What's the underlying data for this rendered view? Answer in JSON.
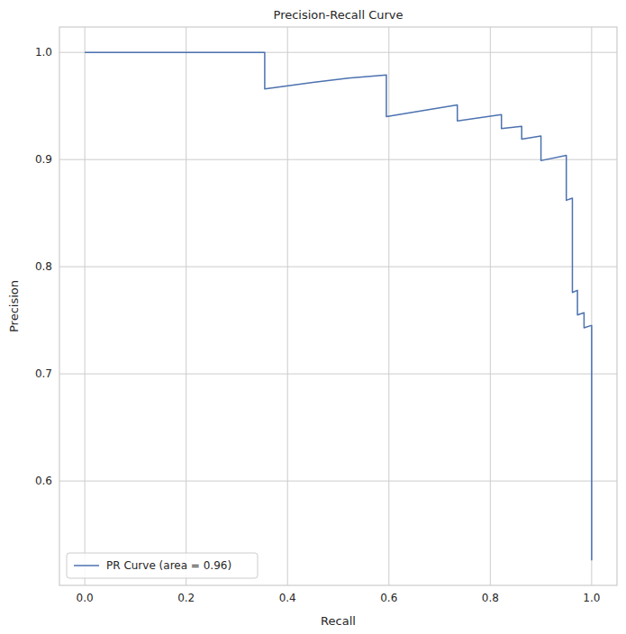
{
  "chart_data": {
    "type": "line",
    "title": "Precision-Recall Curve",
    "x_label": "Recall",
    "y_label": "Precision",
    "x": [
      0,
      0.355,
      0.355,
      0.45,
      0.52,
      0.595,
      0.595,
      0.735,
      0.735,
      0.822,
      0.822,
      0.862,
      0.862,
      0.9,
      0.9,
      0.95,
      0.95,
      0.962,
      0.962,
      0.972,
      0.972,
      0.985,
      0.985,
      0.998,
      1.0,
      1.0
    ],
    "series": [
      {
        "name": "PR Curve (area = 0.96)",
        "color": "#4c72b0",
        "values": [
          1.0,
          1.0,
          0.966,
          0.972,
          0.976,
          0.979,
          0.94,
          0.951,
          0.936,
          0.942,
          0.929,
          0.931,
          0.919,
          0.922,
          0.899,
          0.904,
          0.862,
          0.864,
          0.776,
          0.778,
          0.755,
          0.757,
          0.743,
          0.745,
          0.745,
          0.526
        ]
      }
    ],
    "xlim": [
      -0.05,
      1.05
    ],
    "ylim": [
      0.5026,
      1.0237
    ],
    "xticks": [
      {
        "value": 0,
        "label": "0.0"
      },
      0.2,
      0.4,
      0.6,
      0.8,
      {
        "value": 1,
        "label": "1.0"
      }
    ],
    "yticks": [
      0.6,
      0.7,
      0.8,
      0.9,
      {
        "value": 1,
        "label": "1.0"
      }
    ],
    "grid": true,
    "legend": "lower left"
  }
}
